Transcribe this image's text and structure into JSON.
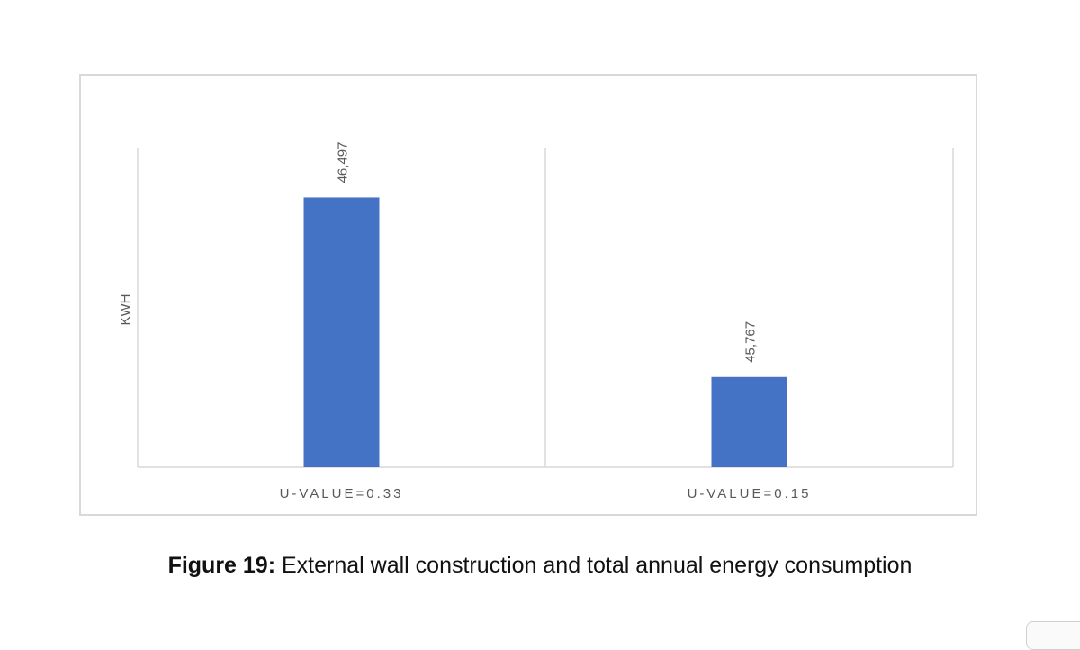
{
  "chart_data": {
    "type": "bar",
    "title": "",
    "xlabel": "",
    "ylabel": "KWH",
    "categories": [
      "U-VALUE=0.33",
      "U-VALUE=0.15"
    ],
    "values": [
      46497,
      45767
    ],
    "value_labels": [
      "46,497",
      "45,767"
    ],
    "ylim": [
      45400,
      46700
    ],
    "grid": false,
    "legend": "none",
    "bar_color": "#4472C4"
  },
  "caption": {
    "label": "Figure 19:",
    "text": " External wall construction and total annual energy consumption"
  }
}
